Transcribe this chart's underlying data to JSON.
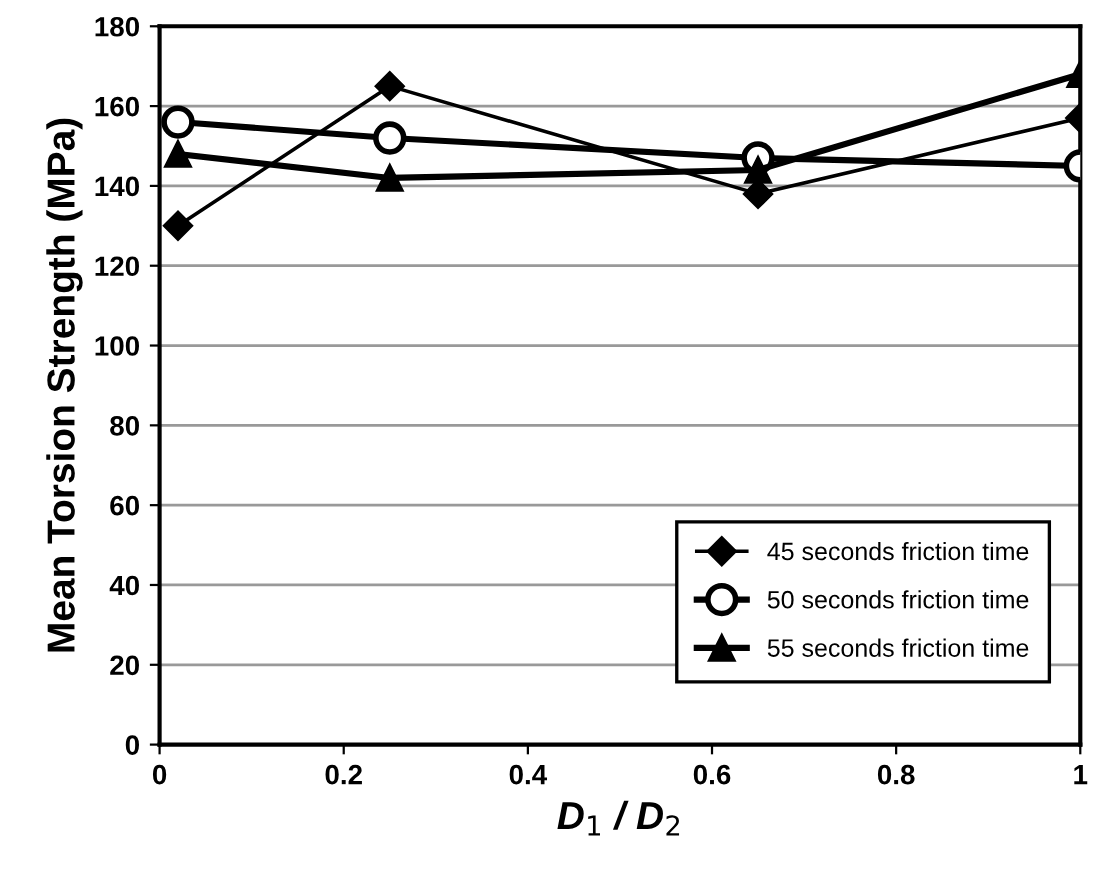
{
  "chart_data": {
    "type": "line",
    "xlabel": "D$_{1}$ / D$_{2}$",
    "ylabel": "Mean Torsion Strength (MPa)",
    "x": [
      0.02,
      0.25,
      0.65,
      1.0
    ],
    "series": [
      {
        "name": "45 seconds friction time",
        "color": "#000000",
        "marker": "diamond",
        "values": [
          130,
          165,
          138,
          157
        ]
      },
      {
        "name": "50 seconds friction time",
        "color": "#000000",
        "marker": "circle",
        "values": [
          156,
          152,
          147,
          145
        ]
      },
      {
        "name": "55 seconds friction time",
        "color": "#000000",
        "marker": "triangle",
        "values": [
          148,
          142,
          144,
          168
        ]
      }
    ],
    "xlim": [
      0,
      1
    ],
    "xticks": [
      0,
      0.2,
      0.4,
      0.6,
      0.8,
      1
    ],
    "ylim": [
      0,
      180
    ],
    "yticks": [
      0,
      20,
      40,
      60,
      80,
      100,
      120,
      140,
      160,
      180
    ],
    "grid": "y",
    "legend": "bottom right",
    "line_style": "solid"
  }
}
